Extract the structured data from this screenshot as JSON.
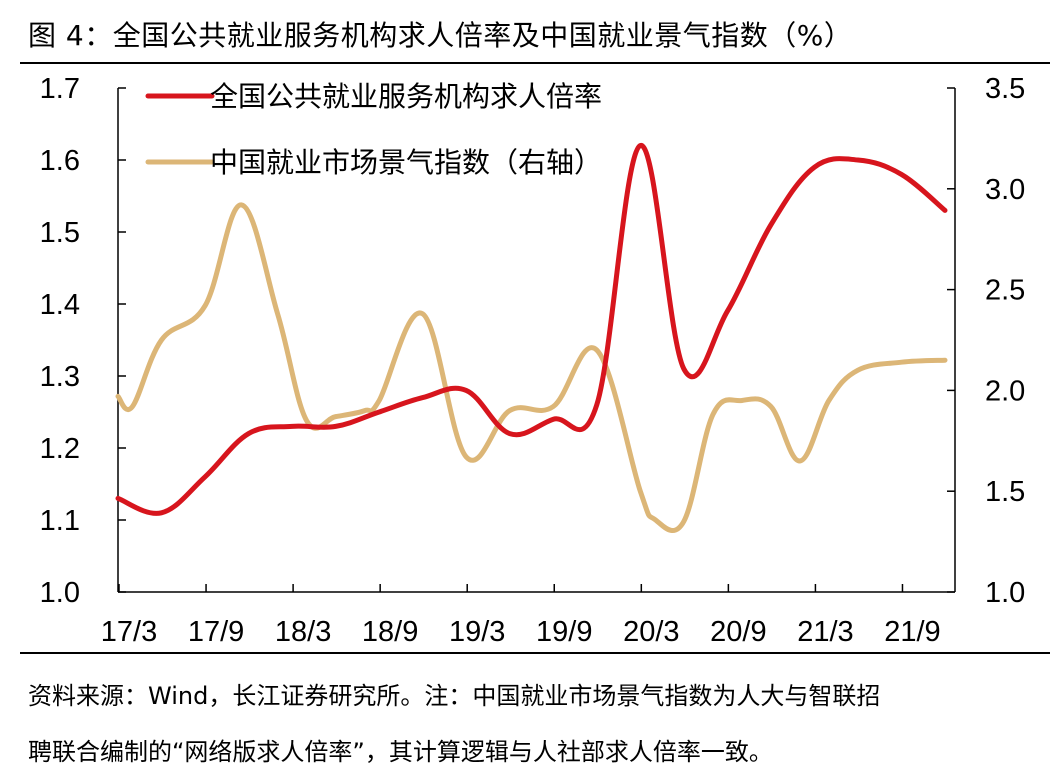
{
  "title": "图  4：全国公共就业服务机构求人倍率及中国就业景气指数（%）",
  "source_line1": "资料来源：Wind，长江证券研究所。注：中国就业市场景气指数为人大与智联招",
  "source_line2": "聘联合编制的“网络版求人倍率”，其计算逻辑与人社部求人倍率一致。",
  "chart_data": {
    "type": "line",
    "x_tick_labels": [
      "17/3",
      "17/9",
      "18/3",
      "18/9",
      "19/3",
      "19/9",
      "20/3",
      "20/9",
      "21/3",
      "21/9"
    ],
    "x_range": [
      2017.0,
      2021.75
    ],
    "y_left": {
      "range": [
        1.0,
        1.7
      ],
      "ticks": [
        "1.0",
        "1.1",
        "1.2",
        "1.3",
        "1.4",
        "1.5",
        "1.6",
        "1.7"
      ]
    },
    "y_right": {
      "range": [
        1.0,
        3.5
      ],
      "ticks": [
        "1.0",
        "1.5",
        "2.0",
        "2.5",
        "3.0",
        "3.5"
      ]
    },
    "series": [
      {
        "name": "全国公共就业服务机构求人倍率",
        "axis": "left",
        "color": "#d7151d",
        "x": [
          2017.0,
          2017.25,
          2017.5,
          2017.75,
          2018.0,
          2018.25,
          2018.5,
          2018.75,
          2019.0,
          2019.25,
          2019.5,
          2019.75,
          2020.0,
          2020.25,
          2020.5,
          2020.75,
          2021.0,
          2021.25,
          2021.5,
          2021.75
        ],
        "values": [
          1.13,
          1.11,
          1.16,
          1.22,
          1.23,
          1.23,
          1.25,
          1.27,
          1.28,
          1.22,
          1.24,
          1.26,
          1.62,
          1.31,
          1.39,
          1.51,
          1.59,
          1.6,
          1.58,
          1.53
        ]
      },
      {
        "name": "中国就业市场景气指数（右轴）",
        "axis": "right",
        "color": "#dcb677",
        "x": [
          2017.0,
          2017.0833,
          2017.25,
          2017.5,
          2017.7083,
          2017.9167,
          2018.0833,
          2018.25,
          2018.4167,
          2018.5,
          2018.75,
          2019.0,
          2019.25,
          2019.5,
          2019.75,
          2020.0,
          2020.0833,
          2020.25,
          2020.4167,
          2020.5833,
          2020.75,
          2020.9167,
          2021.0833,
          2021.25,
          2021.5,
          2021.75
        ],
        "values": [
          1.97,
          1.92,
          2.25,
          2.42,
          2.92,
          2.38,
          1.85,
          1.87,
          1.9,
          1.95,
          2.38,
          1.67,
          1.9,
          1.92,
          2.2,
          1.5,
          1.36,
          1.35,
          1.88,
          1.95,
          1.92,
          1.65,
          1.95,
          2.1,
          2.14,
          2.15
        ]
      }
    ]
  }
}
